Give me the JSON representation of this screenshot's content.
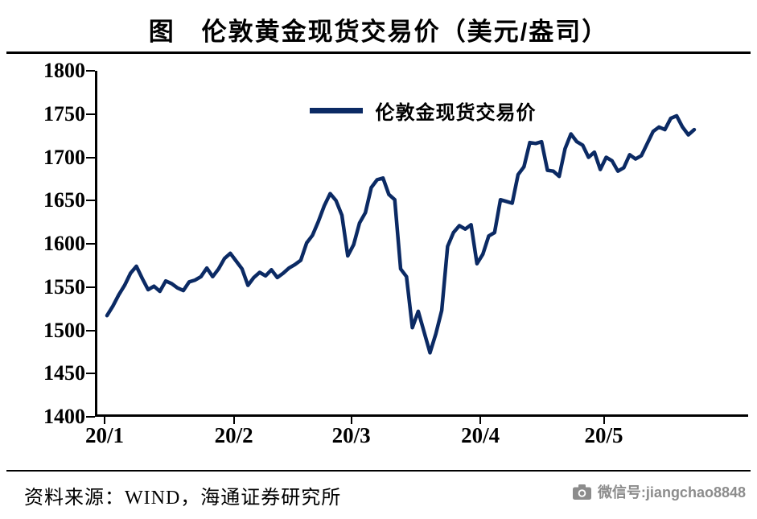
{
  "title": "图　伦敦黄金现货交易价（美元/盎司）",
  "legend": {
    "label": "伦敦金现货交易价"
  },
  "footer": {
    "source": "资料来源：WIND，海通证券研究所",
    "wechat": "微信号:jiangchao8848"
  },
  "colors": {
    "line": "#0b2a64",
    "axis": "#000000",
    "wechat_gray": "#8c8c8c"
  },
  "chart_data": {
    "type": "line",
    "title": "伦敦黄金现货交易价（美元/盎司）",
    "xlabel": "",
    "ylabel": "",
    "grid": false,
    "legend_position": "top-center",
    "ylim": [
      1400,
      1800
    ],
    "yticks": [
      1800,
      1750,
      1700,
      1650,
      1600,
      1550,
      1500,
      1450,
      1400
    ],
    "x_tick_labels": [
      "20/1",
      "20/2",
      "20/3",
      "20/4",
      "20/5"
    ],
    "x_tick_indices": [
      0,
      22,
      42,
      64,
      85
    ],
    "series": [
      {
        "name": "伦敦金现货交易价",
        "color": "#0b2a64",
        "values": [
          1517,
          1528,
          1541,
          1552,
          1566,
          1574,
          1560,
          1547,
          1551,
          1545,
          1557,
          1554,
          1549,
          1546,
          1556,
          1558,
          1562,
          1572,
          1562,
          1571,
          1583,
          1589,
          1580,
          1571,
          1552,
          1561,
          1567,
          1563,
          1570,
          1561,
          1566,
          1572,
          1576,
          1581,
          1601,
          1610,
          1626,
          1644,
          1658,
          1650,
          1633,
          1586,
          1599,
          1624,
          1636,
          1665,
          1674,
          1676,
          1657,
          1651,
          1571,
          1562,
          1503,
          1522,
          1498,
          1474,
          1496,
          1523,
          1597,
          1613,
          1621,
          1617,
          1622,
          1577,
          1588,
          1609,
          1613,
          1651,
          1649,
          1647,
          1680,
          1689,
          1717,
          1716,
          1718,
          1685,
          1684,
          1678,
          1710,
          1727,
          1718,
          1714,
          1700,
          1706,
          1686,
          1700,
          1696,
          1684,
          1688,
          1703,
          1698,
          1702,
          1716,
          1730,
          1735,
          1732,
          1745,
          1748,
          1735,
          1726,
          1732
        ]
      }
    ]
  }
}
